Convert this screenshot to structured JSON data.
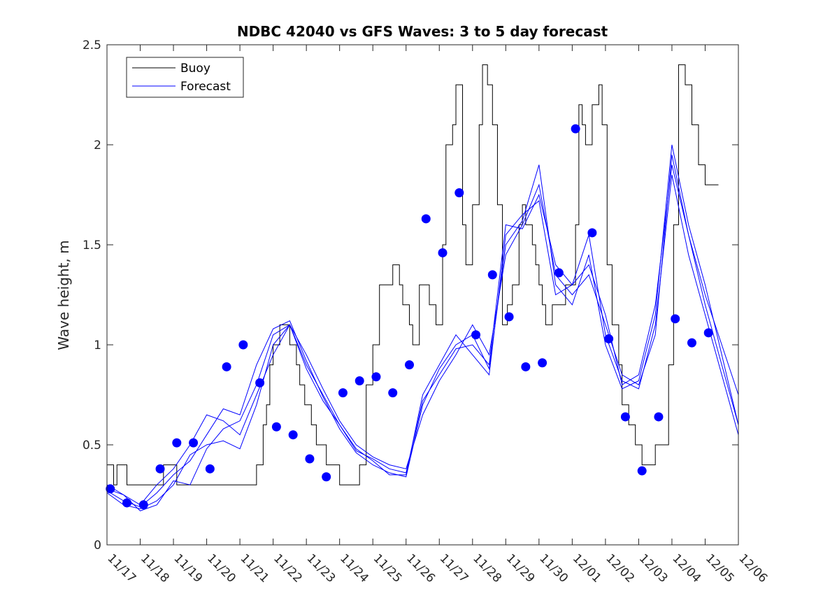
{
  "chart_data": {
    "type": "line",
    "title": "NDBC 42040 vs GFS Waves: 3 to 5 day forecast",
    "xlabel": "",
    "ylabel": "Wave height, m",
    "xlim": [
      0,
      19
    ],
    "ylim": [
      0,
      2.5
    ],
    "grid": false,
    "legend_position": "top-left",
    "x_tick_labels": [
      "11/17",
      "11/18",
      "11/19",
      "11/20",
      "11/21",
      "11/22",
      "11/23",
      "11/24",
      "11/25",
      "11/26",
      "11/27",
      "11/28",
      "11/29",
      "11/30",
      "12/01",
      "12/02",
      "12/03",
      "12/04",
      "12/05",
      "12/06"
    ],
    "y_ticks": [
      0,
      0.5,
      1,
      1.5,
      2,
      2.5
    ],
    "y_tick_labels": [
      "0",
      "0.5",
      "1",
      "1.5",
      "2",
      "2.5"
    ],
    "legend": [
      "Buoy",
      "Forecast"
    ],
    "colors": {
      "buoy": "#000000",
      "forecast": "#0000ff"
    },
    "series": [
      {
        "name": "Buoy",
        "kind": "step",
        "x": [
          0,
          0.2,
          0.3,
          0.5,
          0.6,
          1.0,
          1.2,
          1.7,
          2.1,
          2.4,
          2.6,
          3.3,
          3.6,
          4.0,
          4.1,
          4.3,
          4.5,
          4.7,
          4.8,
          4.9,
          5.0,
          5.2,
          5.3,
          5.4,
          5.5,
          5.7,
          5.8,
          5.95,
          6.05,
          6.15,
          6.3,
          6.45,
          6.6,
          6.8,
          7.0,
          7.15,
          7.3,
          7.45,
          7.6,
          7.8,
          8.0,
          8.2,
          8.4,
          8.6,
          8.8,
          8.9,
          9.1,
          9.2,
          9.4,
          9.5,
          9.7,
          9.9,
          10.1,
          10.2,
          10.4,
          10.5,
          10.7,
          10.8,
          11.0,
          11.2,
          11.3,
          11.45,
          11.6,
          11.75,
          11.9,
          12.05,
          12.2,
          12.4,
          12.5,
          12.6,
          12.8,
          12.9,
          13.0,
          13.1,
          13.2,
          13.4,
          13.6,
          13.8,
          13.95,
          14.1,
          14.2,
          14.3,
          14.4,
          14.6,
          14.8,
          14.9,
          15.05,
          15.2,
          15.4,
          15.5,
          15.7,
          15.9,
          16.1,
          16.3,
          16.5,
          16.7,
          16.9,
          17.05,
          17.2,
          17.4,
          17.6,
          17.8,
          18.0,
          18.2,
          18.4
        ],
        "y": [
          0.4,
          0.3,
          0.4,
          0.4,
          0.3,
          0.3,
          0.3,
          0.4,
          0.3,
          0.3,
          0.3,
          0.3,
          0.3,
          0.3,
          0.3,
          0.3,
          0.4,
          0.6,
          0.7,
          0.9,
          1.0,
          1.1,
          1.1,
          1.1,
          1.0,
          0.9,
          0.8,
          0.7,
          0.7,
          0.6,
          0.5,
          0.5,
          0.4,
          0.4,
          0.3,
          0.3,
          0.3,
          0.3,
          0.4,
          0.8,
          1.0,
          1.3,
          1.3,
          1.4,
          1.3,
          1.2,
          1.1,
          1.0,
          1.3,
          1.3,
          1.2,
          1.1,
          1.5,
          2.0,
          2.1,
          2.3,
          1.6,
          1.4,
          1.7,
          2.1,
          2.4,
          2.3,
          2.1,
          1.7,
          1.1,
          1.2,
          1.3,
          1.6,
          1.7,
          1.6,
          1.5,
          1.4,
          1.3,
          1.2,
          1.1,
          1.2,
          1.2,
          1.3,
          1.3,
          1.6,
          2.2,
          2.1,
          2.0,
          2.2,
          2.3,
          2.1,
          1.4,
          1.1,
          0.9,
          0.7,
          0.6,
          0.5,
          0.4,
          0.4,
          0.5,
          0.5,
          0.9,
          1.6,
          2.4,
          2.3,
          2.1,
          1.9,
          1.8,
          1.8,
          1.8
        ]
      },
      {
        "name": "Forecast",
        "kind": "line",
        "x": [
          0,
          0.5,
          1,
          1.5,
          2,
          2.5,
          3,
          3.5,
          4,
          4.5,
          5,
          5.5,
          6,
          6.5,
          7,
          7.5,
          8,
          8.5,
          9,
          9.5,
          10,
          10.5,
          11,
          11.5,
          12,
          12.5,
          13,
          13.5,
          14,
          14.5,
          15,
          15.5,
          16,
          16.5,
          17,
          17.5,
          18,
          18.5,
          19
        ],
        "y": [
          0.28,
          0.25,
          0.17,
          0.2,
          0.32,
          0.3,
          0.48,
          0.58,
          0.62,
          0.8,
          1.05,
          1.1,
          0.9,
          0.75,
          0.6,
          0.48,
          0.42,
          0.35,
          0.35,
          0.75,
          0.9,
          1.05,
          0.95,
          0.85,
          1.55,
          1.65,
          1.72,
          1.25,
          1.3,
          1.4,
          1.15,
          0.8,
          0.85,
          1.2,
          1.9,
          1.55,
          1.25,
          1.0,
          0.75
        ]
      },
      {
        "name": "Forecast",
        "kind": "line",
        "x": [
          0,
          0.5,
          1,
          1.5,
          2,
          2.5,
          3,
          3.5,
          4,
          4.5,
          5,
          5.5,
          6,
          6.5,
          7,
          7.5,
          8,
          8.5,
          9,
          9.5,
          10,
          10.5,
          11,
          11.5,
          12,
          12.5,
          13,
          13.5,
          14,
          14.5,
          15,
          15.5,
          16,
          16.5,
          17,
          17.5,
          18,
          18.5,
          19
        ],
        "y": [
          0.3,
          0.25,
          0.2,
          0.3,
          0.38,
          0.5,
          0.65,
          0.62,
          0.55,
          0.75,
          0.95,
          1.1,
          0.95,
          0.78,
          0.62,
          0.5,
          0.44,
          0.4,
          0.38,
          0.65,
          0.82,
          0.95,
          1.1,
          0.95,
          1.45,
          1.6,
          1.8,
          1.35,
          1.25,
          1.35,
          1.1,
          0.85,
          0.8,
          1.05,
          1.95,
          1.55,
          1.2,
          0.9,
          0.6
        ]
      },
      {
        "name": "Forecast",
        "kind": "line",
        "x": [
          0,
          0.5,
          1,
          1.5,
          2,
          2.5,
          3,
          3.5,
          4,
          4.5,
          5,
          5.5,
          6,
          6.5,
          7,
          7.5,
          8,
          8.5,
          9,
          9.5,
          10,
          10.5,
          11,
          11.5,
          12,
          12.5,
          13,
          13.5,
          14,
          14.5,
          15,
          15.5,
          16,
          16.5,
          17,
          17.5,
          18,
          18.5,
          19
        ],
        "y": [
          0.27,
          0.22,
          0.19,
          0.26,
          0.35,
          0.42,
          0.55,
          0.68,
          0.65,
          0.9,
          1.08,
          1.12,
          0.92,
          0.74,
          0.58,
          0.46,
          0.4,
          0.36,
          0.34,
          0.7,
          0.88,
          1.0,
          1.05,
          0.88,
          1.5,
          1.62,
          1.9,
          1.3,
          1.2,
          1.45,
          1.0,
          0.78,
          0.82,
          1.15,
          2.0,
          1.6,
          1.3,
          0.95,
          0.6
        ]
      },
      {
        "name": "Forecast",
        "kind": "line",
        "x": [
          0,
          0.5,
          1,
          1.5,
          2,
          2.5,
          3,
          3.5,
          4,
          4.5,
          5,
          5.5,
          6,
          6.5,
          7,
          7.5,
          8,
          8.5,
          9,
          9.5,
          10,
          10.5,
          11,
          11.5,
          12,
          12.5,
          13,
          13.5,
          14,
          14.5,
          15,
          15.5,
          16,
          16.5,
          17,
          17.5,
          18,
          18.5,
          19
        ],
        "y": [
          0.26,
          0.2,
          0.18,
          0.22,
          0.3,
          0.45,
          0.5,
          0.52,
          0.48,
          0.7,
          1.0,
          1.1,
          0.88,
          0.72,
          0.6,
          0.47,
          0.43,
          0.38,
          0.36,
          0.72,
          0.85,
          0.98,
          1.0,
          0.9,
          1.6,
          1.58,
          1.75,
          1.4,
          1.3,
          1.55,
          1.05,
          0.82,
          0.78,
          1.1,
          1.85,
          1.45,
          1.15,
          0.85,
          0.55
        ]
      },
      {
        "name": "Forecast points",
        "kind": "points",
        "x": [
          0.1,
          0.6,
          1.1,
          1.6,
          2.1,
          2.6,
          3.1,
          3.6,
          4.1,
          4.6,
          5.1,
          5.6,
          6.1,
          6.6,
          7.1,
          7.6,
          8.1,
          8.6,
          9.1,
          9.6,
          10.1,
          10.6,
          11.1,
          11.6,
          12.1,
          12.6,
          13.1,
          13.6,
          14.1,
          14.6,
          15.1,
          15.6,
          16.1,
          16.6,
          17.1,
          17.6,
          18.1
        ],
        "y": [
          0.28,
          0.21,
          0.2,
          0.38,
          0.51,
          0.51,
          0.38,
          0.89,
          1.0,
          0.81,
          0.59,
          0.55,
          0.43,
          0.34,
          0.76,
          0.82,
          0.84,
          0.76,
          0.9,
          1.63,
          1.46,
          1.76,
          1.05,
          1.35,
          1.14,
          0.89,
          0.91,
          1.36,
          2.08,
          1.56,
          1.03,
          0.64,
          0.37,
          0.64,
          1.13,
          1.01,
          1.06
        ]
      }
    ]
  }
}
